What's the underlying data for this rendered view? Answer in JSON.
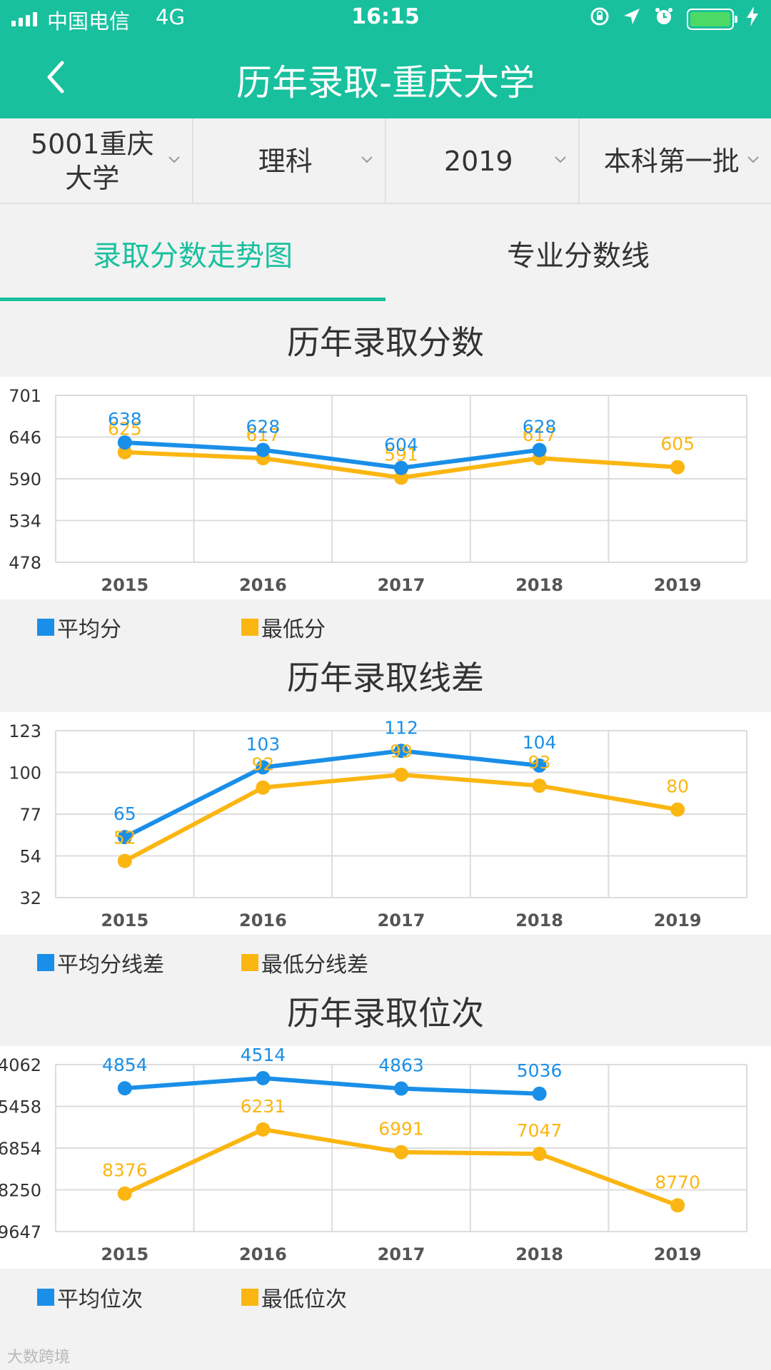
{
  "status": {
    "carrier": "中国电信",
    "network": "4G",
    "time": "16:15",
    "battery_color": "#4cd964"
  },
  "header": {
    "title": "历年录取-重庆大学",
    "back_icon": "chevron-left-icon",
    "color": "#18c09e"
  },
  "filters": [
    {
      "label": "5001重庆大学"
    },
    {
      "label": "理科"
    },
    {
      "label": "2019"
    },
    {
      "label": "本科第一批"
    }
  ],
  "tabs": [
    {
      "label": "录取分数走势图",
      "active": true
    },
    {
      "label": "专业分数线",
      "active": false
    }
  ],
  "colors": {
    "avg": "#1a8fe8",
    "min": "#fbb612",
    "accent": "#18c09e"
  },
  "watermark": "大数跨境",
  "chart_data": [
    {
      "type": "line",
      "title": "历年录取分数",
      "categories": [
        "2015",
        "2016",
        "2017",
        "2018",
        "2019"
      ],
      "y_ticks": [
        "701",
        "646",
        "590",
        "534",
        "478"
      ],
      "ylim": [
        478,
        701
      ],
      "series": [
        {
          "name": "平均分",
          "values": [
            638,
            628,
            604,
            628,
            null
          ]
        },
        {
          "name": "最低分",
          "values": [
            625,
            617,
            591,
            617,
            605
          ]
        }
      ]
    },
    {
      "type": "line",
      "title": "历年录取线差",
      "categories": [
        "2015",
        "2016",
        "2017",
        "2018",
        "2019"
      ],
      "y_ticks": [
        "123",
        "100",
        "77",
        "54",
        "32"
      ],
      "ylim": [
        32,
        123
      ],
      "series": [
        {
          "name": "平均分线差",
          "values": [
            65,
            103,
            112,
            104,
            null
          ]
        },
        {
          "name": "最低分线差",
          "values": [
            52,
            92,
            99,
            93,
            80
          ]
        }
      ]
    },
    {
      "type": "line",
      "title": "历年录取位次",
      "categories": [
        "2015",
        "2016",
        "2017",
        "2018",
        "2019"
      ],
      "y_ticks": [
        "4062",
        "5458",
        "6854",
        "8250",
        "9647"
      ],
      "ylim": [
        4062,
        9647
      ],
      "y_inverted": true,
      "series": [
        {
          "name": "平均位次",
          "values": [
            4854,
            4514,
            4863,
            5036,
            null
          ]
        },
        {
          "name": "最低位次",
          "values": [
            8376,
            6231,
            6991,
            7047,
            8770
          ]
        }
      ]
    }
  ]
}
